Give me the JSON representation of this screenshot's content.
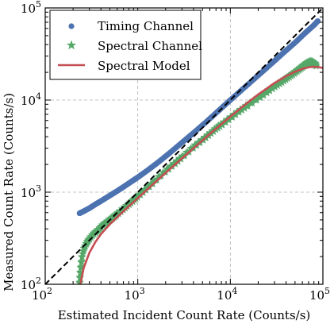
{
  "chart_data": {
    "type": "scatter",
    "title": "",
    "xlabel": "Estimated Incident Count Rate (Counts/s)",
    "ylabel": "Measured Count Rate (Counts/s)",
    "xscale": "log",
    "yscale": "log",
    "xlim": [
      100,
      100000
    ],
    "ylim": [
      100,
      100000
    ],
    "x_ticks": [
      {
        "value": 100,
        "base": "10",
        "exp": "2"
      },
      {
        "value": 1000,
        "base": "10",
        "exp": "3"
      },
      {
        "value": 10000,
        "base": "10",
        "exp": "4"
      },
      {
        "value": 100000,
        "base": "10",
        "exp": "5"
      }
    ],
    "y_ticks": [
      {
        "value": 100,
        "base": "10",
        "exp": "2"
      },
      {
        "value": 1000,
        "base": "10",
        "exp": "3"
      },
      {
        "value": 10000,
        "base": "10",
        "exp": "4"
      },
      {
        "value": 100000,
        "base": "10",
        "exp": "5"
      }
    ],
    "grid": true,
    "legend_position": "top-left",
    "series": [
      {
        "name": "Timing Channel",
        "marker": "circle",
        "color": "#4c72b0",
        "points": [
          [
            235,
            590
          ],
          [
            260,
            620
          ],
          [
            300,
            670
          ],
          [
            350,
            740
          ],
          [
            400,
            800
          ],
          [
            500,
            920
          ],
          [
            600,
            1030
          ],
          [
            700,
            1140
          ],
          [
            850,
            1300
          ],
          [
            1000,
            1450
          ],
          [
            1300,
            1750
          ],
          [
            1700,
            2150
          ],
          [
            2200,
            2650
          ],
          [
            3000,
            3450
          ],
          [
            4000,
            4400
          ],
          [
            5500,
            5800
          ],
          [
            7500,
            7700
          ],
          [
            10000,
            10000
          ],
          [
            14000,
            13500
          ],
          [
            20000,
            18500
          ],
          [
            28000,
            25000
          ],
          [
            38000,
            33000
          ],
          [
            50000,
            42000
          ],
          [
            65000,
            54000
          ],
          [
            80000,
            65000
          ],
          [
            88000,
            72000
          ]
        ]
      },
      {
        "name": "Spectral Channel",
        "marker": "star",
        "color": "#55a868",
        "points": [
          [
            235,
            100
          ],
          [
            240,
            140
          ],
          [
            250,
            200
          ],
          [
            260,
            240
          ],
          [
            280,
            280
          ],
          [
            300,
            310
          ],
          [
            330,
            350
          ],
          [
            370,
            380
          ],
          [
            400,
            420
          ],
          [
            450,
            460
          ],
          [
            500,
            500
          ],
          [
            550,
            540
          ],
          [
            600,
            580
          ],
          [
            700,
            660
          ],
          [
            800,
            740
          ],
          [
            900,
            820
          ],
          [
            1000,
            900
          ],
          [
            1200,
            1060
          ],
          [
            1500,
            1300
          ],
          [
            2000,
            1700
          ],
          [
            2500,
            2050
          ],
          [
            3000,
            2400
          ],
          [
            4000,
            3100
          ],
          [
            5000,
            3700
          ],
          [
            6000,
            4300
          ],
          [
            7000,
            4900
          ],
          [
            8000,
            5400
          ],
          [
            10000,
            6400
          ],
          [
            12500,
            7600
          ],
          [
            15000,
            8600
          ],
          [
            20000,
            10500
          ],
          [
            25000,
            12300
          ],
          [
            30000,
            14000
          ],
          [
            35000,
            15500
          ],
          [
            40000,
            17000
          ],
          [
            45000,
            18500
          ],
          [
            50000,
            20000
          ],
          [
            55000,
            21500
          ],
          [
            60000,
            23000
          ],
          [
            65000,
            24500
          ],
          [
            70000,
            25500
          ],
          [
            75000,
            26000
          ],
          [
            80000,
            25000
          ],
          [
            85000,
            24000
          ]
        ]
      },
      {
        "name": "Spectral Model",
        "marker": "line",
        "color": "#c44e52",
        "points": [
          [
            240,
            100
          ],
          [
            260,
            150
          ],
          [
            300,
            220
          ],
          [
            350,
            290
          ],
          [
            400,
            350
          ],
          [
            500,
            450
          ],
          [
            700,
            620
          ],
          [
            1000,
            860
          ],
          [
            1500,
            1250
          ],
          [
            2000,
            1620
          ],
          [
            3000,
            2330
          ],
          [
            5000,
            3650
          ],
          [
            7000,
            4900
          ],
          [
            10000,
            6600
          ],
          [
            15000,
            9200
          ],
          [
            20000,
            11500
          ],
          [
            30000,
            15300
          ],
          [
            40000,
            18200
          ],
          [
            50000,
            20300
          ],
          [
            60000,
            21800
          ],
          [
            70000,
            22700
          ],
          [
            80000,
            23000
          ],
          [
            90000,
            22800
          ],
          [
            100000,
            22300
          ]
        ]
      },
      {
        "name": "",
        "marker": "dashed-line",
        "color": "#000000",
        "points": [
          [
            100,
            100
          ],
          [
            100000,
            100000
          ]
        ]
      }
    ]
  }
}
